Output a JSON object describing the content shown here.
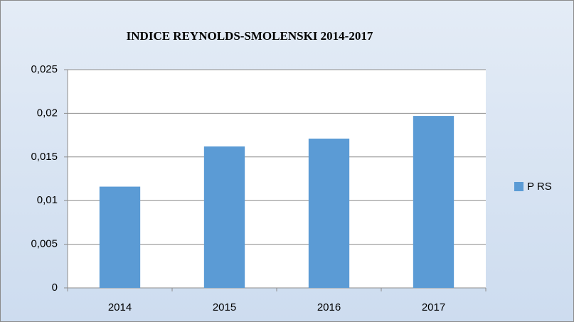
{
  "chart_data": {
    "type": "bar",
    "title": "INDICE REYNOLDS-SMOLENSKI 2014-2017",
    "categories": [
      "2014",
      "2015",
      "2016",
      "2017"
    ],
    "series": [
      {
        "name": "P RS",
        "color": "#5b9bd5",
        "values": [
          0.0116,
          0.0162,
          0.0171,
          0.0197
        ]
      }
    ],
    "ylim": [
      0,
      0.025
    ],
    "yticks": [
      0,
      {
        "value": 0.005,
        "label": "0,005"
      },
      {
        "value": 0.01,
        "label": "0,01"
      },
      {
        "value": 0.015,
        "label": "0,015"
      },
      {
        "value": 0.02,
        "label": "0,02"
      },
      {
        "value": 0.025,
        "label": "0,025"
      }
    ],
    "grid": true,
    "legend": "right"
  }
}
